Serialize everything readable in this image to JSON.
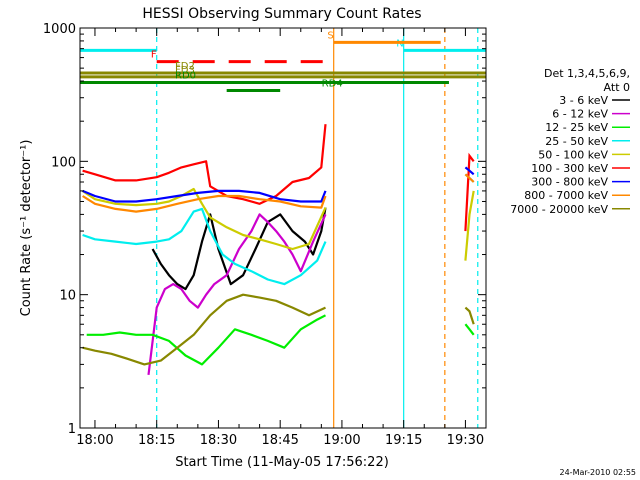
{
  "chart_data": {
    "type": "line",
    "title": "HESSI Observing Summary Count Rates",
    "xlabel": "Start Time (11-May-05 17:56:22)",
    "ylabel": "Count Rate (s⁻¹ detector⁻¹)",
    "yscale": "log",
    "ylim": [
      1,
      1000
    ],
    "xlim": [
      "17:56:22",
      "19:35:00"
    ],
    "x_ticks": [
      "18:00",
      "18:15",
      "18:30",
      "18:45",
      "19:00",
      "19:15",
      "19:30"
    ],
    "y_ticks": [
      "1",
      "10",
      "100",
      "1000"
    ],
    "timestamp": "24-Mar-2010 02:55",
    "legend": {
      "placement": "right",
      "header": [
        "Det 1,3,4,5,6,9,",
        "Att 0"
      ]
    },
    "series": [
      {
        "name": "3 - 6 keV",
        "color": "#000000",
        "x": [
          "18:14",
          "18:16",
          "18:18",
          "18:20",
          "18:22",
          "18:24",
          "18:26",
          "18:28",
          "18:30",
          "18:33",
          "18:36",
          "18:39",
          "18:42",
          "18:45",
          "18:48",
          "18:51",
          "18:53",
          "18:55",
          "18:56"
        ],
        "y": [
          22,
          17,
          14,
          12,
          11,
          14,
          25,
          40,
          22,
          12,
          14,
          22,
          35,
          40,
          30,
          25,
          20,
          30,
          45
        ]
      },
      {
        "name": "6 - 12 keV",
        "color": "#cc00cc",
        "x": [
          "18:13",
          "18:15",
          "18:17",
          "18:19",
          "18:21",
          "18:23",
          "18:25",
          "18:27",
          "18:29",
          "18:32",
          "18:35",
          "18:38",
          "18:40",
          "18:42",
          "18:44",
          "18:46",
          "18:48",
          "18:50",
          "18:53",
          "18:56"
        ],
        "y": [
          2.5,
          8,
          11,
          12,
          11,
          9,
          8,
          10,
          12,
          14,
          22,
          30,
          40,
          35,
          30,
          25,
          20,
          15,
          25,
          40
        ]
      },
      {
        "name": "12 - 25 keV",
        "color": "#00ee00",
        "x": [
          "17:58",
          "18:02",
          "18:06",
          "18:10",
          "18:14",
          "18:18",
          "18:22",
          "18:26",
          "18:30",
          "18:34",
          "18:38",
          "18:42",
          "18:46",
          "18:50",
          "18:54",
          "18:56"
        ],
        "y": [
          5,
          5,
          5.2,
          5,
          5,
          4.5,
          3.5,
          3,
          4,
          5.5,
          5,
          4.5,
          4,
          5.5,
          6.5,
          7
        ]
      },
      {
        "name": "25 - 50 keV",
        "color": "#00eeee",
        "x": [
          "17:57",
          "18:00",
          "18:05",
          "18:10",
          "18:15",
          "18:18",
          "18:21",
          "18:24",
          "18:26",
          "18:28",
          "18:31",
          "18:34",
          "18:38",
          "18:42",
          "18:46",
          "18:50",
          "18:54",
          "18:56"
        ],
        "y": [
          28,
          26,
          25,
          24,
          25,
          26,
          30,
          42,
          44,
          30,
          20,
          17,
          15,
          13,
          12,
          14,
          18,
          25
        ]
      },
      {
        "name": "50 - 100 keV",
        "color": "#cccc00",
        "x": [
          "17:57",
          "18:00",
          "18:05",
          "18:10",
          "18:15",
          "18:18",
          "18:21",
          "18:24",
          "18:26",
          "18:28",
          "18:32",
          "18:36",
          "18:40",
          "18:44",
          "18:48",
          "18:52",
          "18:56"
        ],
        "y": [
          60,
          52,
          48,
          47,
          48,
          50,
          55,
          62,
          48,
          38,
          32,
          28,
          26,
          24,
          22,
          24,
          45
        ]
      },
      {
        "name": "100 - 300 keV",
        "color": "#ff0000",
        "x": [
          "17:57",
          "18:00",
          "18:05",
          "18:10",
          "18:15",
          "18:18",
          "18:21",
          "18:24",
          "18:27",
          "18:28",
          "18:32",
          "18:36",
          "18:40",
          "18:44",
          "18:48",
          "18:52",
          "18:55",
          "18:56"
        ],
        "y": [
          85,
          80,
          72,
          72,
          76,
          82,
          90,
          95,
          100,
          65,
          55,
          52,
          48,
          55,
          70,
          75,
          90,
          190
        ]
      },
      {
        "name": "300 - 800 keV",
        "color": "#0000ff",
        "x": [
          "17:57",
          "18:00",
          "18:05",
          "18:10",
          "18:15",
          "18:20",
          "18:25",
          "18:30",
          "18:35",
          "18:40",
          "18:45",
          "18:50",
          "18:55",
          "18:56"
        ],
        "y": [
          60,
          55,
          50,
          50,
          52,
          55,
          58,
          60,
          60,
          58,
          52,
          50,
          50,
          60
        ]
      },
      {
        "name": "800 - 7000 keV",
        "color": "#ff8800",
        "x": [
          "17:57",
          "18:00",
          "18:05",
          "18:10",
          "18:15",
          "18:20",
          "18:25",
          "18:30",
          "18:35",
          "18:40",
          "18:45",
          "18:50",
          "18:55",
          "18:56"
        ],
        "y": [
          55,
          48,
          44,
          42,
          44,
          48,
          52,
          55,
          55,
          52,
          50,
          46,
          45,
          55
        ]
      },
      {
        "name": "7000 - 20000 keV",
        "color": "#888800",
        "x": [
          "17:57",
          "18:00",
          "18:04",
          "18:08",
          "18:12",
          "18:16",
          "18:20",
          "18:24",
          "18:28",
          "18:32",
          "18:36",
          "18:40",
          "18:44",
          "18:48",
          "18:52",
          "18:56"
        ],
        "y": [
          4,
          3.8,
          3.6,
          3.3,
          3,
          3.2,
          4,
          5,
          7,
          9,
          10,
          9.5,
          9,
          8,
          7,
          8
        ]
      }
    ],
    "post_gap_series": {
      "x": [
        "19:30",
        "19:31",
        "19:32"
      ],
      "values": {
        "3 - 6 keV": [
          null,
          null,
          null
        ],
        "12 - 25 keV": [
          6,
          5.5,
          5
        ],
        "25 - 50 keV": [
          80,
          75,
          70
        ],
        "50 - 100 keV": [
          18,
          40,
          60
        ],
        "100 - 300 keV": [
          30,
          110,
          100
        ],
        "300 - 800 keV": [
          90,
          85,
          80
        ],
        "800 - 7000 keV": [
          80,
          75,
          70
        ],
        "7000 - 20000 keV": [
          8,
          7.5,
          6
        ]
      }
    },
    "flags": [
      {
        "label": "N",
        "color": "#00eeee",
        "level": 680,
        "x0": "17:56:22",
        "x1": "18:15"
      },
      {
        "label": "N",
        "color": "#00eeee",
        "level": 680,
        "x0": "19:15",
        "x1": "19:35"
      },
      {
        "label": "F",
        "color": "#ff0000",
        "level": 560,
        "x0": "18:15",
        "x1": "18:58",
        "dashed": true
      },
      {
        "label": "S",
        "color": "#ff8800",
        "level": 780,
        "x0": "18:58",
        "x1": "19:24"
      },
      {
        "label": "FD2",
        "color": "#888800",
        "level": 460,
        "x0": "17:56:22",
        "x1": "19:35"
      },
      {
        "label": "FD3",
        "color": "#888800",
        "level": 430,
        "x0": "17:56:22",
        "x1": "19:35"
      },
      {
        "label": "RD0",
        "color": "#008800",
        "level": 390,
        "x0": "17:56:22",
        "x1": "19:26"
      },
      {
        "label": "RD4",
        "color": "#008800",
        "level": 340,
        "x0": "18:32",
        "x1": "18:45"
      }
    ],
    "vlines": [
      {
        "x": "18:15",
        "color": "#00eeee",
        "dashed": true
      },
      {
        "x": "18:58",
        "color": "#ff8800",
        "dashed": false
      },
      {
        "x": "19:15",
        "color": "#00eeee",
        "dashed": false
      },
      {
        "x": "19:25",
        "color": "#ff8800",
        "dashed": true
      },
      {
        "x": "19:33",
        "color": "#00eeee",
        "dashed": true
      }
    ]
  }
}
